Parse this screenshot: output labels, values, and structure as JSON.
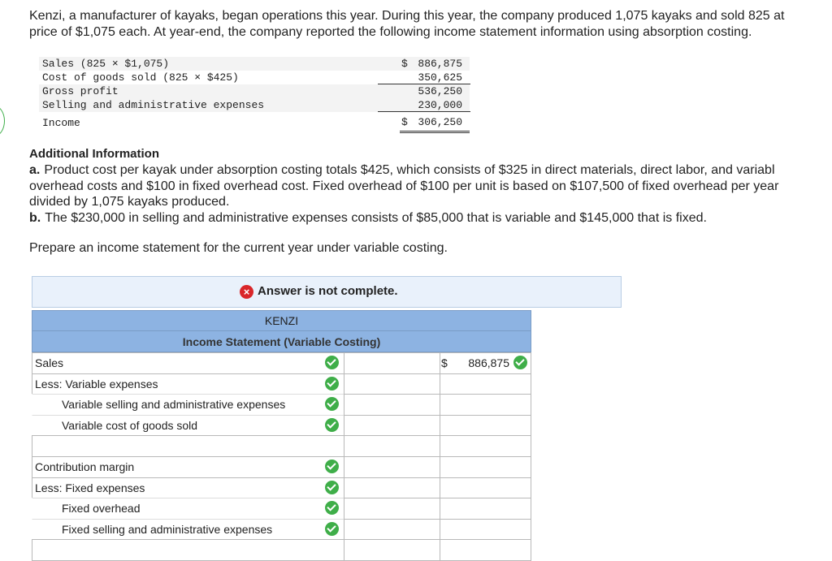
{
  "intro": {
    "lines": [
      "Kenzi, a manufacturer of kayaks, began operations this year. During this year, the company produced 1,075 kayaks and sold 825 at",
      "price of $1,075 each. At year-end, the company reported the following income statement information using absorption costing."
    ]
  },
  "absorption": {
    "rows": [
      {
        "label": "Sales (825 × $1,075)",
        "currency": "$",
        "value": "886,875"
      },
      {
        "label": "Cost of goods sold (825 × $425)",
        "value": "350,625"
      },
      {
        "label": "Gross profit",
        "value": "536,250"
      },
      {
        "label": "Selling and administrative expenses",
        "value": "230,000"
      },
      {
        "label": "Income",
        "currency": "$",
        "value": "306,250"
      }
    ]
  },
  "additional": {
    "heading": "Additional Information",
    "items": [
      {
        "marker": "a.",
        "lines": [
          "Product cost per kayak under absorption costing totals $425, which consists of $325 in direct materials, direct labor, and variabl",
          "overhead costs and $100 in fixed overhead cost. Fixed overhead of $100 per unit is based on $107,500 of fixed overhead per year",
          "divided by 1,075 kayaks produced."
        ]
      },
      {
        "marker": "b.",
        "lines": [
          "The $230,000 in selling and administrative expenses consists of $85,000 that is variable and $145,000 that is fixed."
        ]
      }
    ]
  },
  "prompt": "Prepare an income statement for the current year under variable costing.",
  "answer_banner": "Answer is not complete.",
  "statement": {
    "company": "KENZI",
    "title": "Income Statement (Variable Costing)",
    "rows": [
      {
        "label": "Sales",
        "currency": "$",
        "amount": "886,875"
      },
      {
        "label": "Less: Variable expenses",
        "items": [
          "Variable selling and administrative expenses",
          "Variable cost of goods sold"
        ]
      },
      {
        "label": "Contribution margin"
      },
      {
        "label": "Less: Fixed expenses",
        "items": [
          "Fixed overhead",
          "Fixed selling and administrative expenses"
        ]
      }
    ]
  }
}
